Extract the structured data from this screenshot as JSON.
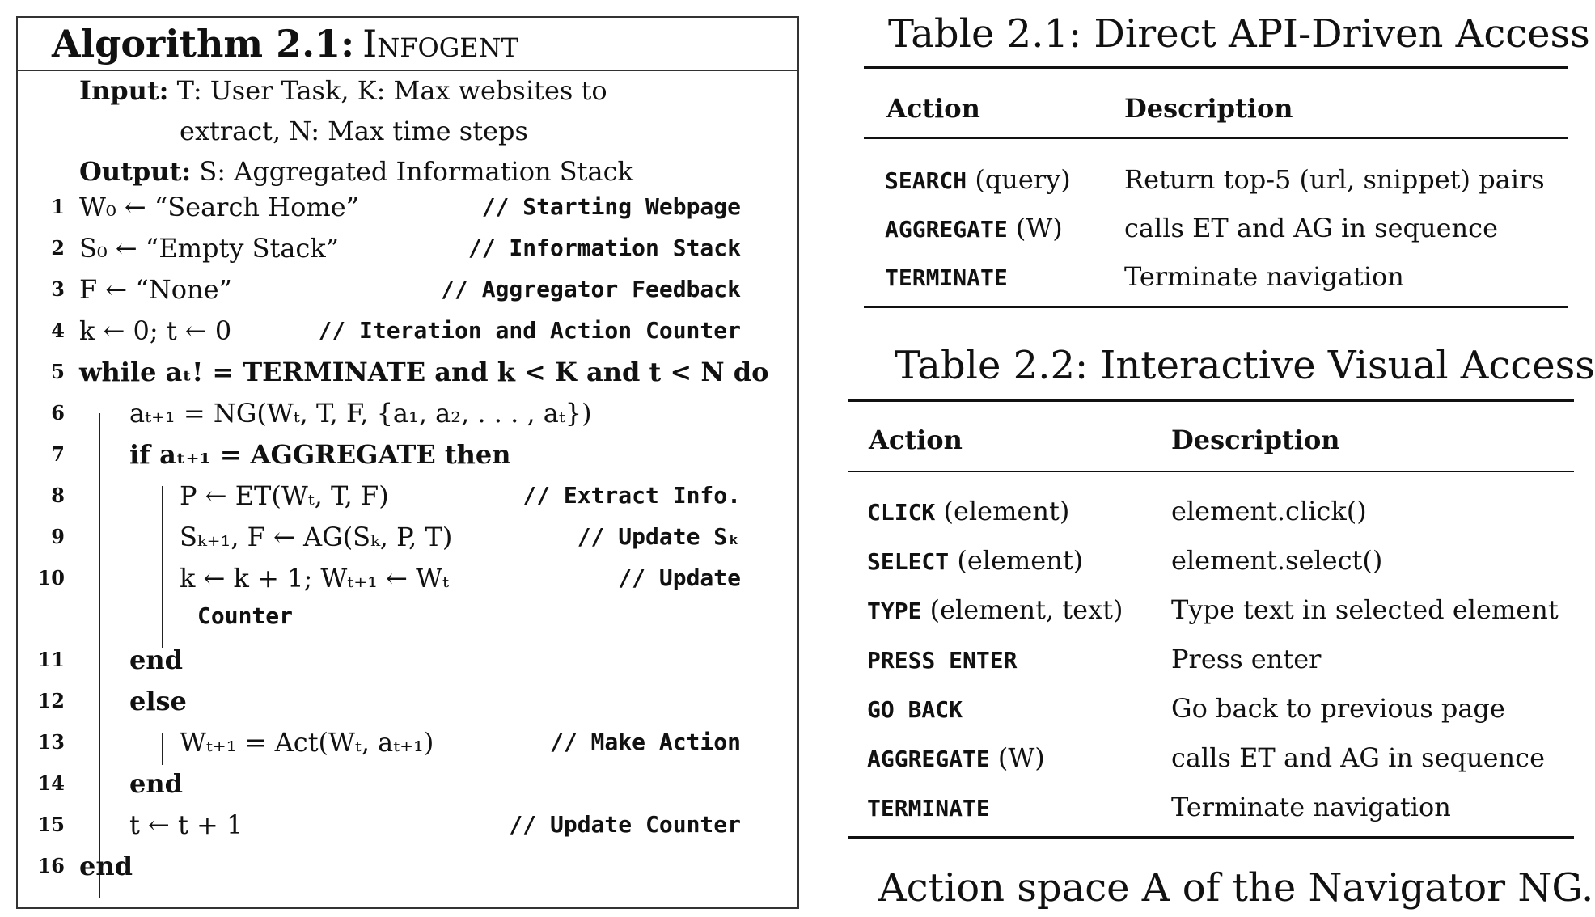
{
  "algorithm": {
    "label": "Algorithm 2.1:",
    "name": "Infogent",
    "input_key": "Input:",
    "input_line1": "T: User Task, K: Max websites to",
    "input_line2": "extract, N: Max time steps",
    "output_key": "Output:",
    "output_text": "S: Aggregated Information Stack",
    "lines": [
      {
        "n": "1",
        "code": "W₀ ← “Search Home”",
        "comment": "// Starting Webpage"
      },
      {
        "n": "2",
        "code": "S₀ ← “Empty Stack”",
        "comment": "// Information Stack"
      },
      {
        "n": "3",
        "code": "F ← “None”",
        "comment": "// Aggregator Feedback"
      },
      {
        "n": "4",
        "code": "k ← 0; t ← 0",
        "comment": "// Iteration and Action Counter"
      },
      {
        "n": "5",
        "code": "while aₜ! = TERMINATE and k < K and t < N do",
        "comment": ""
      },
      {
        "n": "6",
        "code": "aₜ₊₁ = NG(Wₜ, T, F, {a₁, a₂, . . . , aₜ})",
        "comment": ""
      },
      {
        "n": "7",
        "code": "if aₜ₊₁ = AGGREGATE then",
        "comment": ""
      },
      {
        "n": "8",
        "code": "P ← ET(Wₜ, T, F)",
        "comment": "// Extract Info."
      },
      {
        "n": "9",
        "code": "Sₖ₊₁, F ← AG(Sₖ, P, T)",
        "comment": "// Update Sₖ"
      },
      {
        "n": "10",
        "code": "k ← k + 1; Wₜ₊₁ ← Wₜ",
        "comment": "// Update"
      },
      {
        "n": "",
        "code": "Counter",
        "comment": ""
      },
      {
        "n": "11",
        "code": "end",
        "comment": ""
      },
      {
        "n": "12",
        "code": "else",
        "comment": ""
      },
      {
        "n": "13",
        "code": "Wₜ₊₁ = Act(Wₜ, aₜ₊₁)",
        "comment": "// Make Action"
      },
      {
        "n": "14",
        "code": "end",
        "comment": ""
      },
      {
        "n": "15",
        "code": "t ← t + 1",
        "comment": "// Update Counter"
      },
      {
        "n": "16",
        "code": "end",
        "comment": ""
      }
    ]
  },
  "table1": {
    "caption": "Table 2.1: Direct API-Driven Access",
    "col_action": "Action",
    "col_desc": "Description",
    "rows": [
      {
        "cmd": "SEARCH",
        "arg": "(query)",
        "desc": "Return top-5 (url, snippet) pairs"
      },
      {
        "cmd": "AGGREGATE",
        "arg": "(W)",
        "desc": "calls ET and AG in sequence"
      },
      {
        "cmd": "TERMINATE",
        "arg": "",
        "desc": "Terminate navigation"
      }
    ]
  },
  "table2": {
    "caption": "Table 2.2: Interactive Visual Access",
    "col_action": "Action",
    "col_desc": "Description",
    "rows": [
      {
        "cmd": "CLICK",
        "arg": "(element)",
        "desc": "element.click()"
      },
      {
        "cmd": "SELECT",
        "arg": "(element)",
        "desc": "element.select()"
      },
      {
        "cmd": "TYPE",
        "arg": "(element, text)",
        "desc": "Type text in selected element"
      },
      {
        "cmd": "PRESS ENTER",
        "arg": "",
        "desc": "Press enter"
      },
      {
        "cmd": "GO BACK",
        "arg": "",
        "desc": "Go back to previous page"
      },
      {
        "cmd": "AGGREGATE",
        "arg": "(W)",
        "desc": "calls ET and AG in sequence"
      },
      {
        "cmd": "TERMINATE",
        "arg": "",
        "desc": "Terminate navigation"
      }
    ]
  },
  "figure_caption": "Action space A of the Navigator NG."
}
